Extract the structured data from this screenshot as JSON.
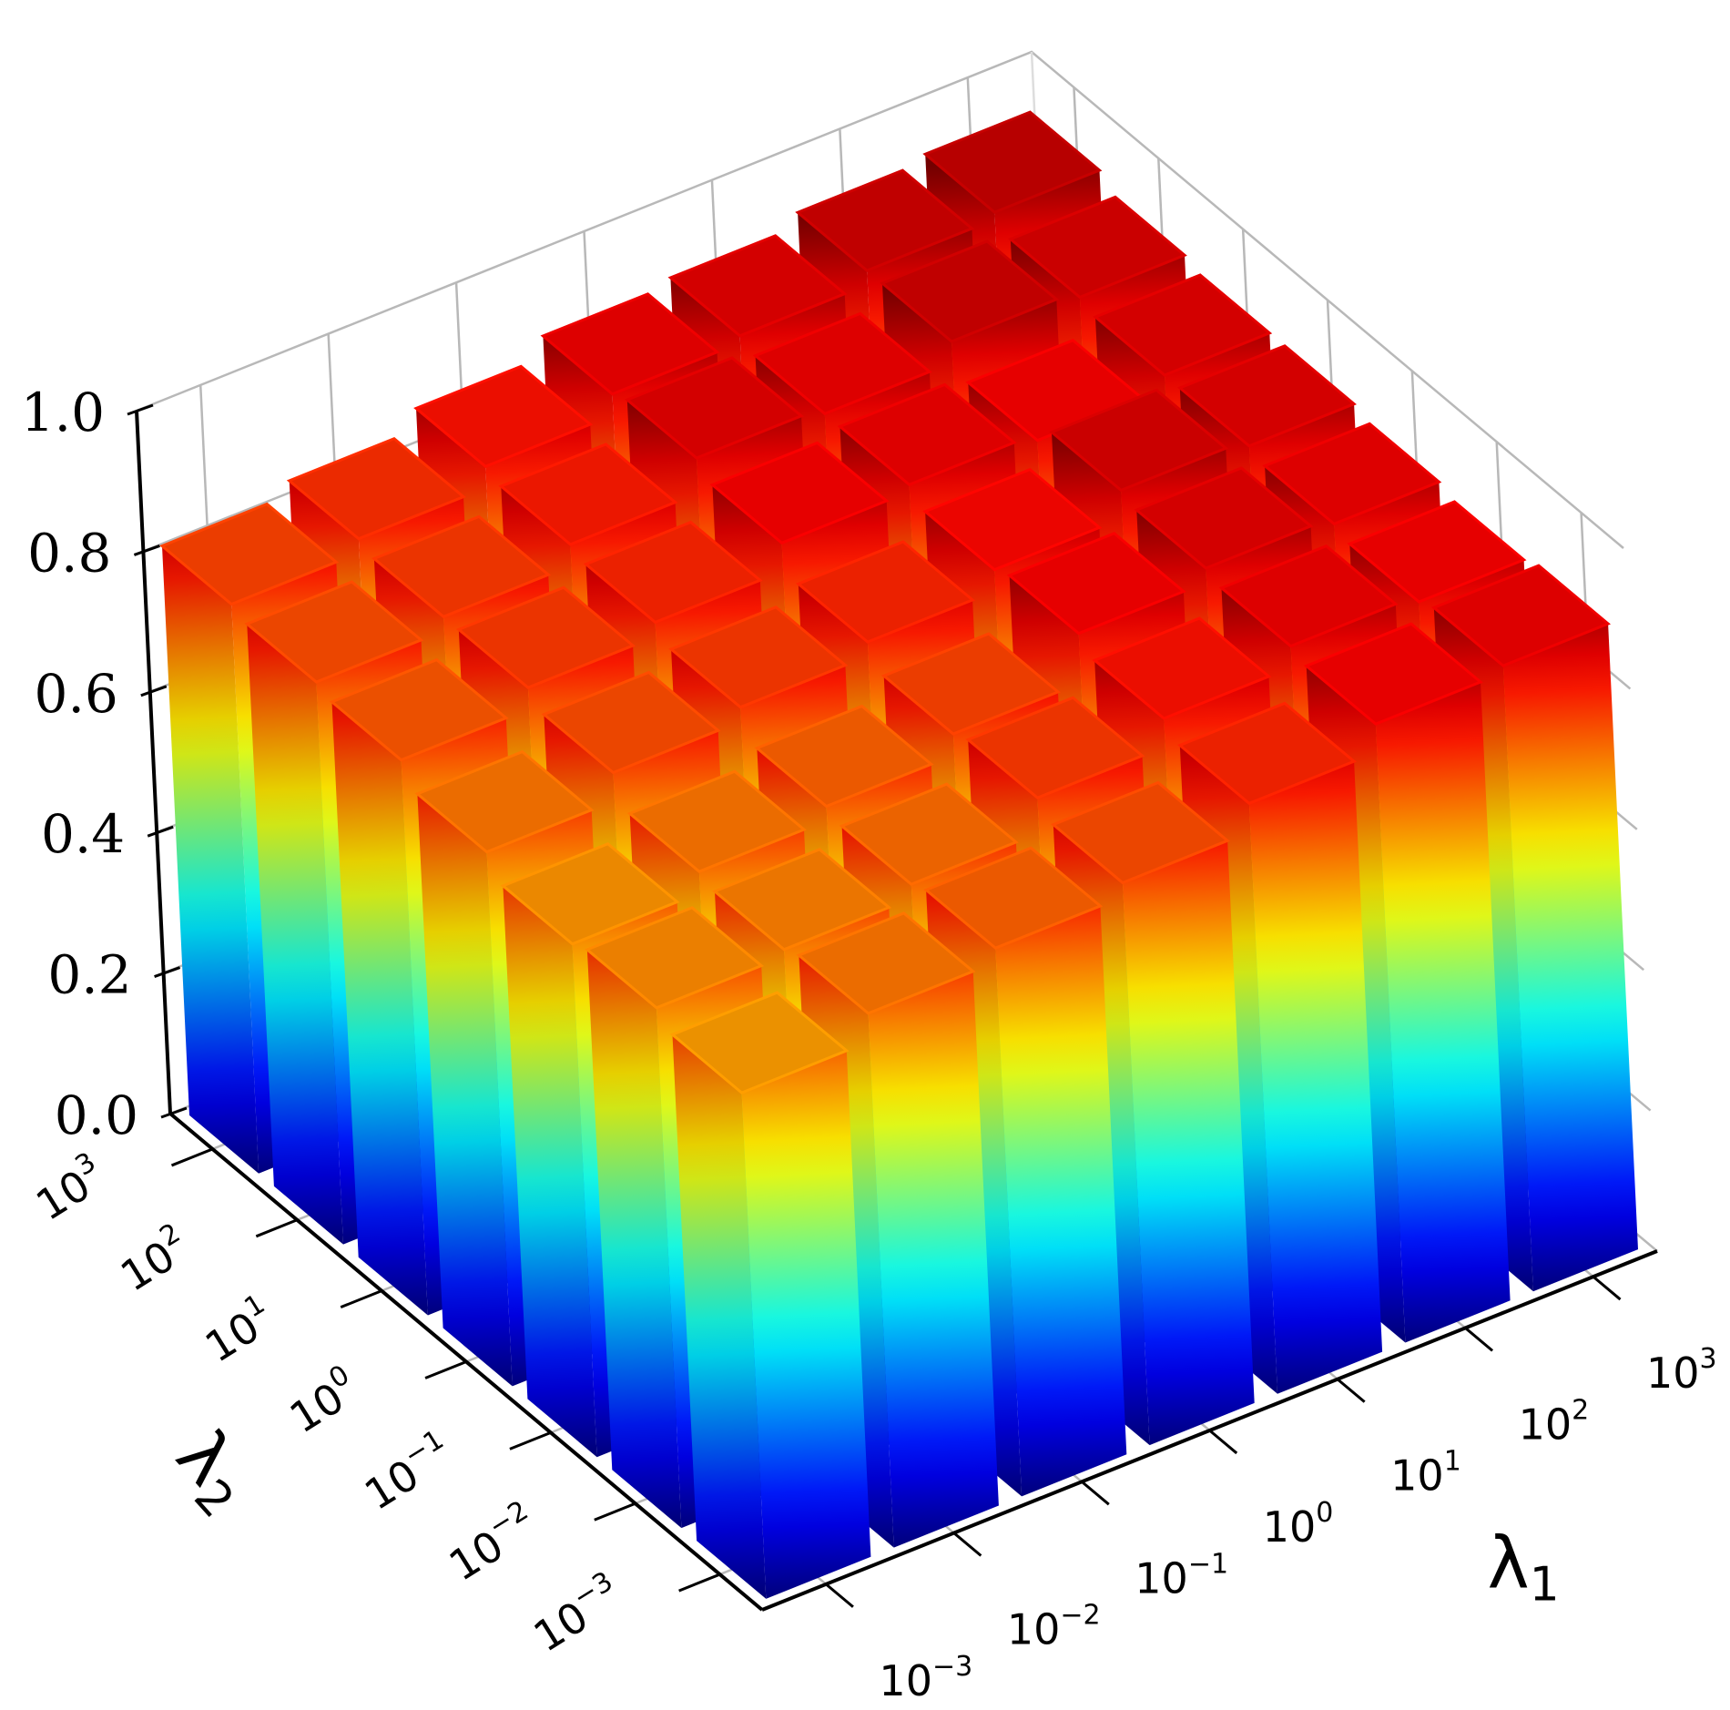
{
  "chart_data": {
    "type": "bar3d",
    "x": {
      "label_symbol": "λ",
      "label_subscript": "1",
      "ticks": [
        {
          "base": "10",
          "exp": "−3"
        },
        {
          "base": "10",
          "exp": "−2"
        },
        {
          "base": "10",
          "exp": "−1"
        },
        {
          "base": "10",
          "exp": "0"
        },
        {
          "base": "10",
          "exp": "1"
        },
        {
          "base": "10",
          "exp": "2"
        },
        {
          "base": "10",
          "exp": "3"
        }
      ],
      "scale": "log"
    },
    "y": {
      "label_symbol": "λ",
      "label_subscript": "2",
      "ticks": [
        {
          "base": "10",
          "exp": "−3"
        },
        {
          "base": "10",
          "exp": "−2"
        },
        {
          "base": "10",
          "exp": "−1"
        },
        {
          "base": "10",
          "exp": "0"
        },
        {
          "base": "10",
          "exp": "1"
        },
        {
          "base": "10",
          "exp": "2"
        },
        {
          "base": "10",
          "exp": "3"
        }
      ],
      "scale": "log"
    },
    "z": {
      "ticks": [
        "0.0",
        "0.2",
        "0.4",
        "0.6",
        "0.8",
        "1.0"
      ],
      "range": [
        0,
        1
      ]
    },
    "colormap": "jet",
    "grid": true,
    "values": [
      [
        0.72,
        0.76,
        0.78,
        0.8,
        0.84,
        0.88,
        0.89
      ],
      [
        0.74,
        0.75,
        0.77,
        0.82,
        0.86,
        0.89,
        0.88
      ],
      [
        0.73,
        0.76,
        0.78,
        0.81,
        0.88,
        0.9,
        0.89
      ],
      [
        0.76,
        0.8,
        0.82,
        0.84,
        0.87,
        0.91,
        0.9
      ],
      [
        0.79,
        0.82,
        0.84,
        0.88,
        0.89,
        0.88,
        0.9
      ],
      [
        0.8,
        0.82,
        0.85,
        0.9,
        0.89,
        0.92,
        0.91
      ],
      [
        0.81,
        0.83,
        0.86,
        0.89,
        0.9,
        0.92,
        0.93
      ]
    ]
  }
}
